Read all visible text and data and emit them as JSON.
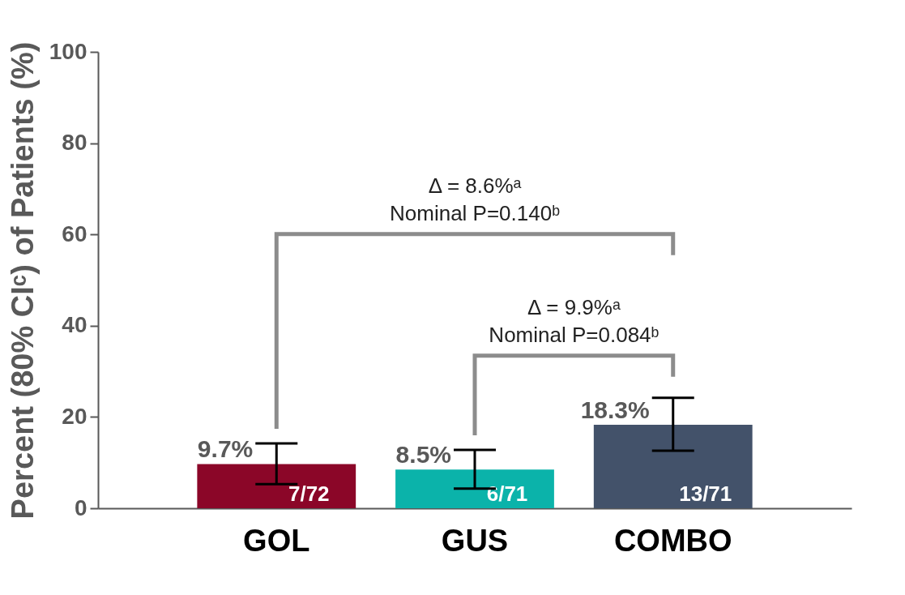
{
  "chart_data": {
    "type": "bar",
    "ylabel": "Percent (80% CIᶜ) of Patients (%)",
    "categories": [
      "GOL",
      "GUS",
      "COMBO"
    ],
    "values": [
      9.7,
      8.5,
      18.3
    ],
    "colors": [
      "#8b0628",
      "#0bb3aa",
      "#43526a"
    ],
    "errors": [
      [
        5.3,
        14.2
      ],
      [
        4.3,
        12.8
      ],
      [
        12.6,
        24.2
      ]
    ],
    "value_labels": [
      "9.7%",
      "8.5%",
      "18.3%"
    ],
    "ylim": [
      0,
      100
    ],
    "yticks": [
      0,
      20,
      40,
      60,
      80,
      100
    ],
    "grid": false,
    "legend": false,
    "annotations": [
      "Δ = 8.6%ᵃ\nNominal P=0.140ᵇ",
      "Δ = 9.9%ᵃ\nNominal P=0.084ᵇ",
      {
        "text": "7/72",
        "x": "GOL",
        "y": 0
      },
      {
        "text": "6/71",
        "x": "GUS",
        "y": 0
      },
      {
        "text": "13/71",
        "x": "COMBO",
        "y": 0
      }
    ]
  }
}
